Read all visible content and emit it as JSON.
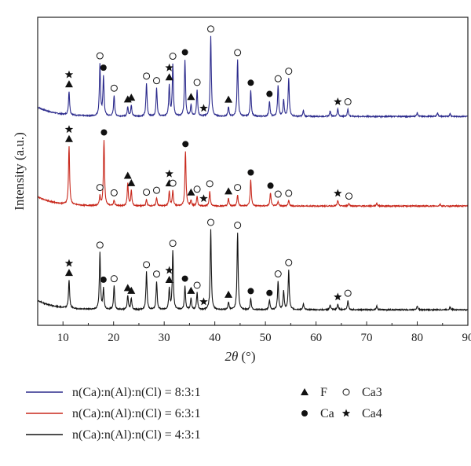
{
  "chart_data": {
    "type": "line",
    "xlabel_main": "2θ",
    "xlabel_unit": "(°)",
    "ylabel": "Intensity (a.u.)",
    "xlim": [
      5,
      90
    ],
    "xticks": [
      "10",
      "20",
      "30",
      "40",
      "50",
      "60",
      "70",
      "80",
      "90"
    ],
    "grid": false,
    "legend_position": "bottom",
    "series": [
      {
        "name": "n(Ca):n(Al):n(Cl) = 8:3:1",
        "color": "#2b2a8c",
        "offset": 2.0,
        "peaks": [
          [
            11.2,
            0.25
          ],
          [
            17.3,
            0.55
          ],
          [
            18.0,
            0.42
          ],
          [
            20.1,
            0.22
          ],
          [
            22.8,
            0.1
          ],
          [
            23.5,
            0.12
          ],
          [
            26.5,
            0.35
          ],
          [
            28.5,
            0.3
          ],
          [
            31.0,
            0.32
          ],
          [
            31.7,
            0.55
          ],
          [
            34.1,
            0.6
          ],
          [
            35.3,
            0.12
          ],
          [
            36.5,
            0.28
          ],
          [
            39.2,
            0.85
          ],
          [
            42.7,
            0.1
          ],
          [
            44.5,
            0.6
          ],
          [
            47.1,
            0.28
          ],
          [
            50.8,
            0.16
          ],
          [
            52.5,
            0.32
          ],
          [
            53.6,
            0.18
          ],
          [
            54.6,
            0.4
          ],
          [
            57.5,
            0.06
          ],
          [
            62.8,
            0.06
          ],
          [
            64.3,
            0.08
          ],
          [
            66.3,
            0.08
          ],
          [
            80.0,
            0.04
          ],
          [
            84.0,
            0.04
          ],
          [
            86.5,
            0.03
          ]
        ]
      },
      {
        "name": "n(Ca):n(Al):n(Cl) = 6:3:1",
        "color": "#c8281c",
        "offset": 1.0,
        "peaks": [
          [
            11.2,
            0.62
          ],
          [
            17.3,
            0.1
          ],
          [
            18.1,
            0.7
          ],
          [
            20.1,
            0.06
          ],
          [
            22.8,
            0.24
          ],
          [
            23.5,
            0.16
          ],
          [
            26.5,
            0.07
          ],
          [
            28.5,
            0.09
          ],
          [
            31.0,
            0.16
          ],
          [
            31.7,
            0.16
          ],
          [
            34.2,
            0.58
          ],
          [
            35.3,
            0.06
          ],
          [
            36.5,
            0.1
          ],
          [
            39.0,
            0.16
          ],
          [
            42.7,
            0.08
          ],
          [
            44.5,
            0.12
          ],
          [
            47.1,
            0.28
          ],
          [
            51.0,
            0.14
          ],
          [
            52.5,
            0.05
          ],
          [
            54.6,
            0.06
          ],
          [
            64.3,
            0.06
          ],
          [
            66.5,
            0.03
          ],
          [
            72.0,
            0.03
          ],
          [
            84.5,
            0.02
          ]
        ]
      },
      {
        "name": "n(Ca):n(Al):n(Cl) = 4:3:1",
        "color": "#141414",
        "offset": 0.0,
        "peaks": [
          [
            11.2,
            0.3
          ],
          [
            17.3,
            0.6
          ],
          [
            18.0,
            0.22
          ],
          [
            20.1,
            0.25
          ],
          [
            22.8,
            0.15
          ],
          [
            23.5,
            0.12
          ],
          [
            26.5,
            0.4
          ],
          [
            28.5,
            0.3
          ],
          [
            31.0,
            0.22
          ],
          [
            31.7,
            0.62
          ],
          [
            34.1,
            0.25
          ],
          [
            35.3,
            0.12
          ],
          [
            36.5,
            0.18
          ],
          [
            39.2,
            0.85
          ],
          [
            42.7,
            0.08
          ],
          [
            44.5,
            0.82
          ],
          [
            47.1,
            0.12
          ],
          [
            50.8,
            0.1
          ],
          [
            52.5,
            0.3
          ],
          [
            53.6,
            0.2
          ],
          [
            54.6,
            0.42
          ],
          [
            57.5,
            0.06
          ],
          [
            62.8,
            0.05
          ],
          [
            64.3,
            0.06
          ],
          [
            66.3,
            0.1
          ],
          [
            72.0,
            0.04
          ],
          [
            80.0,
            0.04
          ],
          [
            86.5,
            0.03
          ]
        ]
      }
    ],
    "phases": [
      {
        "name": "F",
        "symbol": "triangle"
      },
      {
        "name": "Ca",
        "symbol": "filled-circle"
      },
      {
        "name": "Ca3",
        "symbol": "open-circle"
      },
      {
        "name": "Ca4",
        "symbol": "star"
      }
    ],
    "markers": [
      {
        "series": 0,
        "x": 11.2,
        "symbols": [
          "triangle",
          "star"
        ]
      },
      {
        "series": 0,
        "x": 17.3,
        "symbols": [
          "open-circle"
        ]
      },
      {
        "series": 0,
        "x": 18.0,
        "symbols": [
          "filled-circle"
        ]
      },
      {
        "series": 0,
        "x": 20.1,
        "symbols": [
          "open-circle"
        ]
      },
      {
        "series": 0,
        "x": 22.8,
        "symbols": [
          "triangle"
        ]
      },
      {
        "series": 0,
        "x": 23.5,
        "symbols": [
          "triangle"
        ]
      },
      {
        "series": 0,
        "x": 26.5,
        "symbols": [
          "open-circle"
        ]
      },
      {
        "series": 0,
        "x": 28.5,
        "symbols": [
          "open-circle"
        ]
      },
      {
        "series": 0,
        "x": 31.0,
        "symbols": [
          "triangle",
          "star"
        ]
      },
      {
        "series": 0,
        "x": 31.7,
        "symbols": [
          "open-circle"
        ]
      },
      {
        "series": 0,
        "x": 34.1,
        "symbols": [
          "filled-circle"
        ]
      },
      {
        "series": 0,
        "x": 35.3,
        "symbols": [
          "triangle"
        ]
      },
      {
        "series": 0,
        "x": 36.5,
        "symbols": [
          "open-circle"
        ]
      },
      {
        "series": 0,
        "x": 37.8,
        "symbols": [
          "star"
        ]
      },
      {
        "series": 0,
        "x": 39.2,
        "symbols": [
          "open-circle"
        ]
      },
      {
        "series": 0,
        "x": 42.7,
        "symbols": [
          "triangle"
        ]
      },
      {
        "series": 0,
        "x": 44.5,
        "symbols": [
          "open-circle"
        ]
      },
      {
        "series": 0,
        "x": 47.1,
        "symbols": [
          "filled-circle"
        ]
      },
      {
        "series": 0,
        "x": 50.8,
        "symbols": [
          "filled-circle"
        ]
      },
      {
        "series": 0,
        "x": 52.5,
        "symbols": [
          "open-circle"
        ]
      },
      {
        "series": 0,
        "x": 54.6,
        "symbols": [
          "open-circle"
        ]
      },
      {
        "series": 0,
        "x": 64.3,
        "symbols": [
          "star"
        ]
      },
      {
        "series": 0,
        "x": 66.3,
        "symbols": [
          "open-circle"
        ]
      },
      {
        "series": 1,
        "x": 11.2,
        "symbols": [
          "triangle",
          "star"
        ]
      },
      {
        "series": 1,
        "x": 17.3,
        "symbols": [
          "open-circle"
        ]
      },
      {
        "series": 1,
        "x": 18.1,
        "symbols": [
          "filled-circle"
        ]
      },
      {
        "series": 1,
        "x": 20.1,
        "symbols": [
          "open-circle"
        ]
      },
      {
        "series": 1,
        "x": 22.8,
        "symbols": [
          "triangle"
        ]
      },
      {
        "series": 1,
        "x": 23.5,
        "symbols": [
          "triangle"
        ]
      },
      {
        "series": 1,
        "x": 26.5,
        "symbols": [
          "open-circle"
        ]
      },
      {
        "series": 1,
        "x": 28.5,
        "symbols": [
          "open-circle"
        ]
      },
      {
        "series": 1,
        "x": 31.0,
        "symbols": [
          "triangle",
          "star"
        ]
      },
      {
        "series": 1,
        "x": 31.7,
        "symbols": [
          "open-circle"
        ]
      },
      {
        "series": 1,
        "x": 34.2,
        "symbols": [
          "filled-circle"
        ]
      },
      {
        "series": 1,
        "x": 35.3,
        "symbols": [
          "triangle"
        ]
      },
      {
        "series": 1,
        "x": 36.5,
        "symbols": [
          "open-circle"
        ]
      },
      {
        "series": 1,
        "x": 37.8,
        "symbols": [
          "star"
        ]
      },
      {
        "series": 1,
        "x": 39.0,
        "symbols": [
          "open-circle"
        ]
      },
      {
        "series": 1,
        "x": 42.7,
        "symbols": [
          "triangle"
        ]
      },
      {
        "series": 1,
        "x": 44.5,
        "symbols": [
          "open-circle"
        ]
      },
      {
        "series": 1,
        "x": 47.1,
        "symbols": [
          "filled-circle"
        ]
      },
      {
        "series": 1,
        "x": 51.0,
        "symbols": [
          "filled-circle"
        ]
      },
      {
        "series": 1,
        "x": 52.5,
        "symbols": [
          "open-circle"
        ]
      },
      {
        "series": 1,
        "x": 54.6,
        "symbols": [
          "open-circle"
        ]
      },
      {
        "series": 1,
        "x": 64.3,
        "symbols": [
          "star"
        ]
      },
      {
        "series": 1,
        "x": 66.5,
        "symbols": [
          "open-circle"
        ]
      },
      {
        "series": 2,
        "x": 11.2,
        "symbols": [
          "triangle",
          "star"
        ]
      },
      {
        "series": 2,
        "x": 17.3,
        "symbols": [
          "open-circle"
        ]
      },
      {
        "series": 2,
        "x": 18.0,
        "symbols": [
          "filled-circle"
        ]
      },
      {
        "series": 2,
        "x": 20.1,
        "symbols": [
          "open-circle"
        ]
      },
      {
        "series": 2,
        "x": 22.8,
        "symbols": [
          "triangle"
        ]
      },
      {
        "series": 2,
        "x": 23.5,
        "symbols": [
          "triangle"
        ]
      },
      {
        "series": 2,
        "x": 26.5,
        "symbols": [
          "open-circle"
        ]
      },
      {
        "series": 2,
        "x": 28.5,
        "symbols": [
          "open-circle"
        ]
      },
      {
        "series": 2,
        "x": 31.0,
        "symbols": [
          "triangle",
          "star"
        ]
      },
      {
        "series": 2,
        "x": 31.7,
        "symbols": [
          "open-circle"
        ]
      },
      {
        "series": 2,
        "x": 34.1,
        "symbols": [
          "filled-circle"
        ]
      },
      {
        "series": 2,
        "x": 35.3,
        "symbols": [
          "triangle"
        ]
      },
      {
        "series": 2,
        "x": 36.5,
        "symbols": [
          "open-circle"
        ]
      },
      {
        "series": 2,
        "x": 37.8,
        "symbols": [
          "star"
        ]
      },
      {
        "series": 2,
        "x": 39.2,
        "symbols": [
          "open-circle"
        ]
      },
      {
        "series": 2,
        "x": 42.7,
        "symbols": [
          "triangle"
        ]
      },
      {
        "series": 2,
        "x": 44.5,
        "symbols": [
          "open-circle"
        ]
      },
      {
        "series": 2,
        "x": 47.1,
        "symbols": [
          "filled-circle"
        ]
      },
      {
        "series": 2,
        "x": 50.8,
        "symbols": [
          "filled-circle"
        ]
      },
      {
        "series": 2,
        "x": 52.5,
        "symbols": [
          "open-circle"
        ]
      },
      {
        "series": 2,
        "x": 54.6,
        "symbols": [
          "open-circle"
        ]
      },
      {
        "series": 2,
        "x": 64.3,
        "symbols": [
          "star"
        ]
      },
      {
        "series": 2,
        "x": 66.3,
        "symbols": [
          "open-circle"
        ]
      }
    ]
  }
}
